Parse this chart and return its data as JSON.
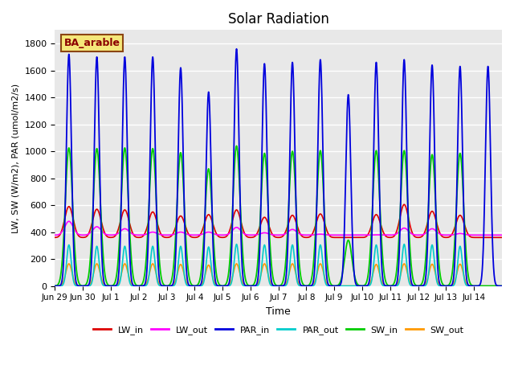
{
  "title": "Solar Radiation",
  "ylabel": "LW, SW (W/m2), PAR (umol/m2/s)",
  "xlabel": "Time",
  "ylim": [
    0,
    1900
  ],
  "annotation_text": "BA_arable",
  "annotation_bbox": {
    "facecolor": "#f5e87a",
    "edgecolor": "#8B4513"
  },
  "annotation_color": "#8B0000",
  "background_color": "#e8e8e8",
  "grid_color": "white",
  "series": {
    "LW_in": {
      "color": "#dd0000",
      "lw": 1.2
    },
    "LW_out": {
      "color": "#ff00ff",
      "lw": 1.2
    },
    "PAR_in": {
      "color": "#0000dd",
      "lw": 1.3
    },
    "PAR_out": {
      "color": "#00cccc",
      "lw": 1.2
    },
    "SW_in": {
      "color": "#00cc00",
      "lw": 1.3
    },
    "SW_out": {
      "color": "#ff9900",
      "lw": 1.2
    }
  },
  "xtick_labels": [
    "Jun 29",
    "Jun 30",
    "Jul 1",
    "Jul 2",
    "Jul 3",
    "Jul 4",
    "Jul 5",
    "Jul 6",
    "Jul 7",
    "Jul 8",
    "Jul 9",
    "Jul 10",
    "Jul 11",
    "Jul 12",
    "Jul 13",
    "Jul 14"
  ],
  "peaks": {
    "PAR_in": [
      1720,
      1700,
      1700,
      1700,
      1620,
      1440,
      1760,
      1650,
      1660,
      1680,
      1420,
      1660,
      1680,
      1640,
      1630,
      1630
    ],
    "SW_in": [
      1025,
      1020,
      1025,
      1020,
      990,
      870,
      1040,
      985,
      1000,
      1005,
      340,
      1005,
      1005,
      975,
      985,
      0
    ],
    "LW_in": [
      590,
      570,
      565,
      550,
      520,
      530,
      565,
      510,
      525,
      535,
      0,
      530,
      605,
      555,
      525,
      0
    ],
    "LW_out": [
      480,
      440,
      425,
      400,
      400,
      400,
      435,
      395,
      420,
      385,
      0,
      380,
      430,
      425,
      390,
      0
    ],
    "PAR_out": [
      305,
      295,
      295,
      295,
      295,
      290,
      310,
      305,
      305,
      305,
      0,
      305,
      310,
      305,
      295,
      0
    ],
    "SW_out": [
      165,
      165,
      165,
      165,
      160,
      155,
      165,
      165,
      165,
      165,
      0,
      160,
      165,
      162,
      162,
      0
    ]
  },
  "LW_night": {
    "LW_in": 360,
    "LW_out": 378
  },
  "PAR_sigma": 0.09,
  "SW_sigma": 0.13,
  "LW_sigma": 0.15
}
